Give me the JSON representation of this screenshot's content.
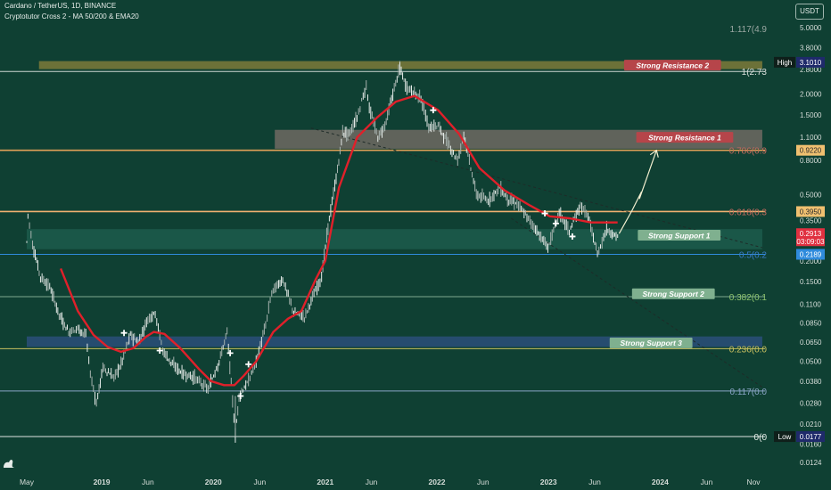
{
  "header": {
    "title": "Cardano / TetherUS, 1D, BINANCE",
    "subtitle": "Cryptotutor Cross 2 - MA 50/200 & EMA20"
  },
  "currency_label": "USDT",
  "chart_data": {
    "type": "candlestick",
    "y_scale": "log",
    "ylim": [
      0.0115,
      5.3
    ],
    "price_ticks": [
      "5.0000",
      "3.8000",
      "2.8000",
      "2.0000",
      "1.5000",
      "1.1000",
      "0.8000",
      "0.5000",
      "0.3500",
      "0.2000",
      "0.1500",
      "0.1100",
      "0.0850",
      "0.0650",
      "0.0500",
      "0.0380",
      "0.0280",
      "0.0210",
      "0.0160",
      "0.0124"
    ],
    "time_axis": {
      "start": "2018-05-01",
      "end": "2024-11-30",
      "labels": [
        {
          "date": "2018-05-01",
          "text": "May"
        },
        {
          "date": "2019-01-01",
          "text": "2019"
        },
        {
          "date": "2019-06-01",
          "text": "Jun"
        },
        {
          "date": "2020-01-01",
          "text": "2020"
        },
        {
          "date": "2020-06-01",
          "text": "Jun"
        },
        {
          "date": "2021-01-01",
          "text": "2021"
        },
        {
          "date": "2021-06-01",
          "text": "Jun"
        },
        {
          "date": "2022-01-01",
          "text": "2022"
        },
        {
          "date": "2022-06-01",
          "text": "Jun"
        },
        {
          "date": "2023-01-01",
          "text": "2023"
        },
        {
          "date": "2023-06-01",
          "text": "Jun"
        },
        {
          "date": "2024-01-01",
          "text": "2024"
        },
        {
          "date": "2024-06-01",
          "text": "Jun"
        },
        {
          "date": "2024-11-01",
          "text": "Nov"
        }
      ]
    },
    "fib_levels": [
      {
        "label": "1.117(4.9",
        "price": 4.95,
        "color": "#9aa7a2"
      },
      {
        "label": "1(2.73",
        "price": 2.73,
        "color": "#d8dedb"
      },
      {
        "label": "0.786(0.9",
        "price": 0.92,
        "color": "#c36b5e"
      },
      {
        "label": "0.618(0.3",
        "price": 0.395,
        "color": "#c36b5e"
      },
      {
        "label": "0.5(0.2",
        "price": 0.2189,
        "color": "#3a7bc8"
      },
      {
        "label": "0.382(0.1",
        "price": 0.122,
        "color": "#8fc46f"
      },
      {
        "label": "0.236(0.0",
        "price": 0.0595,
        "color": "#c9c060"
      },
      {
        "label": "0.117(0.0",
        "price": 0.0332,
        "color": "#8aa5c6"
      },
      {
        "label": "0(0",
        "price": 0.0177,
        "color": "#e6ece9"
      }
    ],
    "horizontal_lines": [
      {
        "price": 2.73,
        "color": "#cfd8d4"
      },
      {
        "price": 0.92,
        "color": "#e0a057"
      },
      {
        "price": 0.395,
        "color": "#f0b070"
      },
      {
        "price": 0.2189,
        "color": "#2f8bdc"
      },
      {
        "price": 0.122,
        "color": "#7fa88f"
      },
      {
        "price": 0.0595,
        "color": "#c9c060"
      },
      {
        "price": 0.0332,
        "color": "#8aa5c6"
      },
      {
        "price": 0.0177,
        "color": "#dfe5e2"
      }
    ],
    "zones": [
      {
        "label": "Strong Resistance 2",
        "from": "2018-06-10",
        "to": "2024-11-30",
        "low": 2.82,
        "high": 3.15,
        "fill": "#7d7a3a",
        "label_date": "2023-09-05",
        "label_price": 2.98,
        "label_bg": "#b6454a",
        "label_color": "#ffffff"
      },
      {
        "label": "Strong Resistance 1",
        "from": "2020-07-20",
        "to": "2024-11-30",
        "low": 0.94,
        "high": 1.22,
        "fill": "#6e6a63",
        "label_date": "2023-10-15",
        "label_price": 1.1,
        "label_bg": "#b6454a",
        "label_color": "#ffffff"
      },
      {
        "label": "Strong Support 1",
        "from": "2018-05-01",
        "to": "2024-11-30",
        "low": 0.235,
        "high": 0.31,
        "fill": "#1c5c4c",
        "label_date": "2023-10-20",
        "label_price": 0.285,
        "label_bg": "#7fb08f",
        "label_color": "#ffffff"
      },
      {
        "label": "Strong Support 2",
        "from": "2018-05-01",
        "to": "2024-11-30",
        "low": 0.121,
        "high": 0.123,
        "fill": "none",
        "label_date": "2023-10-01",
        "label_price": 0.127,
        "label_bg": "#7fb08f",
        "label_color": "#ffffff"
      },
      {
        "label": "Strong Support 3",
        "from": "2018-05-01",
        "to": "2024-11-30",
        "low": 0.061,
        "high": 0.0705,
        "fill": "#2a4f7a",
        "label_date": "2023-07-20",
        "label_price": 0.0645,
        "label_bg": "#7fb08f",
        "label_color": "#ffffff"
      }
    ],
    "price_series": [
      [
        "2018-05-01",
        0.26
      ],
      [
        "2018-05-05",
        0.38
      ],
      [
        "2018-05-20",
        0.25
      ],
      [
        "2018-06-15",
        0.16
      ],
      [
        "2018-07-15",
        0.14
      ],
      [
        "2018-08-15",
        0.095
      ],
      [
        "2018-09-15",
        0.075
      ],
      [
        "2018-10-15",
        0.079
      ],
      [
        "2018-11-10",
        0.072
      ],
      [
        "2018-11-25",
        0.042
      ],
      [
        "2018-12-15",
        0.028
      ],
      [
        "2019-01-05",
        0.046
      ],
      [
        "2019-02-10",
        0.04
      ],
      [
        "2019-03-05",
        0.048
      ],
      [
        "2019-04-05",
        0.072
      ],
      [
        "2019-05-01",
        0.065
      ],
      [
        "2019-06-01",
        0.09
      ],
      [
        "2019-06-25",
        0.098
      ],
      [
        "2019-07-20",
        0.058
      ],
      [
        "2019-08-20",
        0.048
      ],
      [
        "2019-09-25",
        0.042
      ],
      [
        "2019-11-01",
        0.04
      ],
      [
        "2019-12-15",
        0.034
      ],
      [
        "2020-01-20",
        0.05
      ],
      [
        "2020-02-15",
        0.075
      ],
      [
        "2020-03-13",
        0.018
      ],
      [
        "2020-03-25",
        0.031
      ],
      [
        "2020-04-25",
        0.038
      ],
      [
        "2020-05-20",
        0.05
      ],
      [
        "2020-06-20",
        0.082
      ],
      [
        "2020-07-10",
        0.13
      ],
      [
        "2020-08-15",
        0.155
      ],
      [
        "2020-09-20",
        0.098
      ],
      [
        "2020-10-25",
        0.092
      ],
      [
        "2020-11-20",
        0.12
      ],
      [
        "2020-12-20",
        0.16
      ],
      [
        "2021-01-10",
        0.32
      ],
      [
        "2021-02-10",
        0.7
      ],
      [
        "2021-02-27",
        1.18
      ],
      [
        "2021-03-20",
        1.15
      ],
      [
        "2021-04-15",
        1.45
      ],
      [
        "2021-05-15",
        2.25
      ],
      [
        "2021-05-25",
        1.65
      ],
      [
        "2021-06-22",
        1.1
      ],
      [
        "2021-07-15",
        1.3
      ],
      [
        "2021-08-10",
        2.0
      ],
      [
        "2021-09-02",
        2.92
      ],
      [
        "2021-09-20",
        2.25
      ],
      [
        "2021-10-15",
        2.05
      ],
      [
        "2021-11-10",
        1.9
      ],
      [
        "2021-12-05",
        1.25
      ],
      [
        "2022-01-05",
        1.3
      ],
      [
        "2022-02-01",
        1.05
      ],
      [
        "2022-03-10",
        0.8
      ],
      [
        "2022-03-30",
        1.15
      ],
      [
        "2022-05-10",
        0.5
      ],
      [
        "2022-06-18",
        0.46
      ],
      [
        "2022-07-25",
        0.55
      ],
      [
        "2022-08-20",
        0.47
      ],
      [
        "2022-09-20",
        0.44
      ],
      [
        "2022-11-10",
        0.33
      ],
      [
        "2022-12-30",
        0.24
      ],
      [
        "2023-02-05",
        0.39
      ],
      [
        "2023-03-10",
        0.3
      ],
      [
        "2023-04-15",
        0.43
      ],
      [
        "2023-05-10",
        0.37
      ],
      [
        "2023-06-10",
        0.22
      ],
      [
        "2023-07-10",
        0.31
      ],
      [
        "2023-08-10",
        0.28
      ],
      [
        "2023-08-20",
        0.2913
      ]
    ],
    "moving_average": [
      [
        "2018-08-20",
        0.18
      ],
      [
        "2018-10-15",
        0.1
      ],
      [
        "2018-12-05",
        0.072
      ],
      [
        "2019-01-20",
        0.061
      ],
      [
        "2019-03-05",
        0.057
      ],
      [
        "2019-04-15",
        0.06
      ],
      [
        "2019-05-25",
        0.07
      ],
      [
        "2019-06-20",
        0.075
      ],
      [
        "2019-07-25",
        0.073
      ],
      [
        "2019-09-15",
        0.06
      ],
      [
        "2019-11-15",
        0.045
      ],
      [
        "2019-12-25",
        0.038
      ],
      [
        "2020-02-05",
        0.036
      ],
      [
        "2020-03-10",
        0.036
      ],
      [
        "2020-04-10",
        0.041
      ],
      [
        "2020-05-20",
        0.05
      ],
      [
        "2020-07-15",
        0.075
      ],
      [
        "2020-09-01",
        0.09
      ],
      [
        "2020-10-15",
        0.1
      ],
      [
        "2020-12-01",
        0.155
      ],
      [
        "2021-01-01",
        0.2
      ],
      [
        "2021-02-15",
        0.55
      ],
      [
        "2021-04-15",
        1.1
      ],
      [
        "2021-06-20",
        1.45
      ],
      [
        "2021-08-20",
        1.8
      ],
      [
        "2021-10-20",
        1.95
      ],
      [
        "2022-01-05",
        1.6
      ],
      [
        "2022-03-15",
        1.15
      ],
      [
        "2022-05-20",
        0.72
      ],
      [
        "2022-08-10",
        0.53
      ],
      [
        "2022-11-01",
        0.43
      ],
      [
        "2023-01-05",
        0.37
      ],
      [
        "2023-03-10",
        0.36
      ],
      [
        "2023-05-20",
        0.34
      ],
      [
        "2023-08-15",
        0.34
      ]
    ],
    "projection": [
      [
        "2023-08-20",
        0.2913
      ],
      [
        "2023-10-01",
        0.4
      ],
      [
        "2023-11-01",
        0.52
      ],
      [
        "2023-10-25",
        0.47
      ],
      [
        "2023-12-20",
        0.92
      ]
    ],
    "trendlines": [
      {
        "from": [
          "2020-11-15",
          1.25
        ],
        "to": [
          "2024-11-30",
          0.24
        ]
      },
      {
        "from": [
          "2022-09-01",
          0.36
        ],
        "to": [
          "2024-11-30",
          0.035
        ]
      }
    ],
    "cross_markers": [
      [
        "2019-03-15",
        0.074
      ],
      [
        "2019-07-10",
        0.058
      ],
      [
        "2020-02-25",
        0.056
      ],
      [
        "2020-04-25",
        0.048
      ],
      [
        "2020-03-30",
        0.031
      ],
      [
        "2021-12-20",
        1.6
      ],
      [
        "2022-12-20",
        0.385
      ],
      [
        "2023-01-25",
        0.335
      ],
      [
        "2023-03-20",
        0.28
      ]
    ],
    "price_labels": [
      {
        "text": "3.1010",
        "price": 3.1,
        "bg": "#1f2a6b",
        "color": "#ffffff",
        "tag": "High"
      },
      {
        "text": "0.9220",
        "price": 0.92,
        "bg": "#f0c070",
        "color": "#2a2a2a"
      },
      {
        "text": "0.3950",
        "price": 0.395,
        "bg": "#f0c070",
        "color": "#2a2a2a"
      },
      {
        "text": "0.2913",
        "price": 0.2913,
        "bg": "#e03040",
        "color": "#ffffff",
        "sub": "03:09:03"
      },
      {
        "text": "0.2189",
        "price": 0.2189,
        "bg": "#2f8bdc",
        "color": "#ffffff"
      },
      {
        "text": "0.0177",
        "price": 0.0177,
        "bg": "#1f2a6b",
        "color": "#ffffff",
        "tag": "Low"
      }
    ],
    "colors": {
      "up": "#e6ece9",
      "down": "#a7b3af",
      "ma": "#e0202a",
      "projection": "#f2efd0",
      "trend": "#1e2b28"
    }
  }
}
